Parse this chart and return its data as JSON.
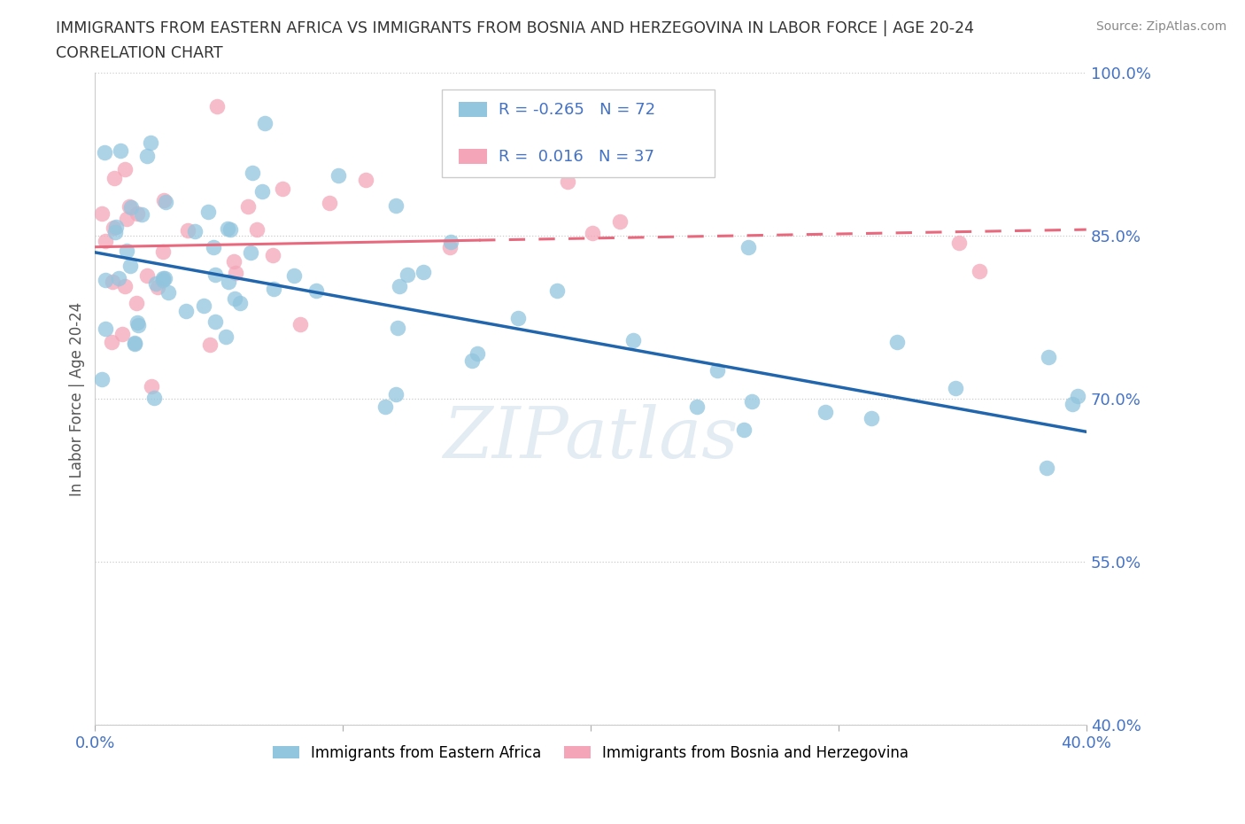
{
  "title_line1": "IMMIGRANTS FROM EASTERN AFRICA VS IMMIGRANTS FROM BOSNIA AND HERZEGOVINA IN LABOR FORCE | AGE 20-24",
  "title_line2": "CORRELATION CHART",
  "source_text": "Source: ZipAtlas.com",
  "ylabel": "In Labor Force | Age 20-24",
  "x_min": 0.0,
  "x_max": 0.4,
  "y_min": 0.4,
  "y_max": 1.0,
  "blue_color": "#92c5de",
  "pink_color": "#f4a6b8",
  "blue_line_color": "#2166ac",
  "pink_line_color": "#e8697d",
  "blue_R": -0.265,
  "blue_N": 72,
  "pink_R": 0.016,
  "pink_N": 37,
  "watermark": "ZIPatlas",
  "legend_label_blue": "Immigrants from Eastern Africa",
  "legend_label_pink": "Immigrants from Bosnia and Herzegovina",
  "title_color": "#333333",
  "tick_color": "#4472c4",
  "source_color": "#888888"
}
